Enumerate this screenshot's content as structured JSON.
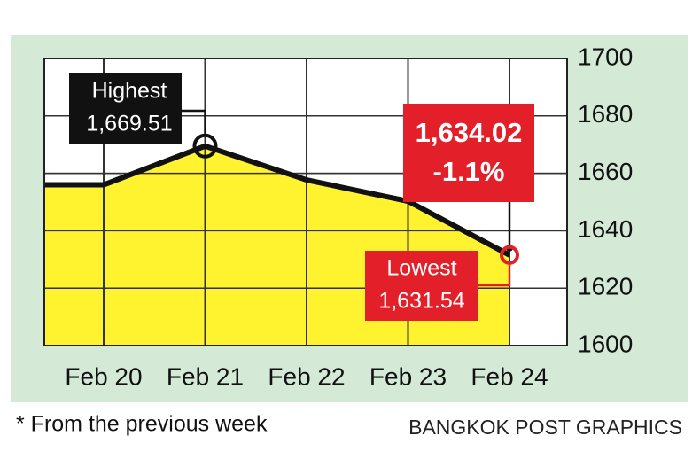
{
  "chart_data": {
    "type": "area",
    "categories": [
      null,
      "Feb 20",
      "Feb 21",
      "Feb 22",
      "Feb 23",
      "Feb 24"
    ],
    "series": [
      {
        "color": "#111111",
        "fill": "#fff22e",
        "values": [
          1656,
          1656,
          1669.51,
          1657.7,
          1650.3,
          1631.54
        ]
      }
    ],
    "ylim": [
      1600,
      1700
    ],
    "yticks": [
      1600,
      1620,
      1640,
      1660,
      1680,
      1700
    ],
    "grid": true,
    "annotations": {
      "highest": {
        "label": "Highest",
        "value_label": "1,669.51"
      },
      "lowest": {
        "label": "Lowest",
        "value_label": "1,631.54"
      },
      "close": {
        "value": 1634.02,
        "label": "1,634.02",
        "change": "-1.1%"
      }
    },
    "footnote": "* From the previous week",
    "source": "BANGKOK POST GRAPHICS"
  }
}
